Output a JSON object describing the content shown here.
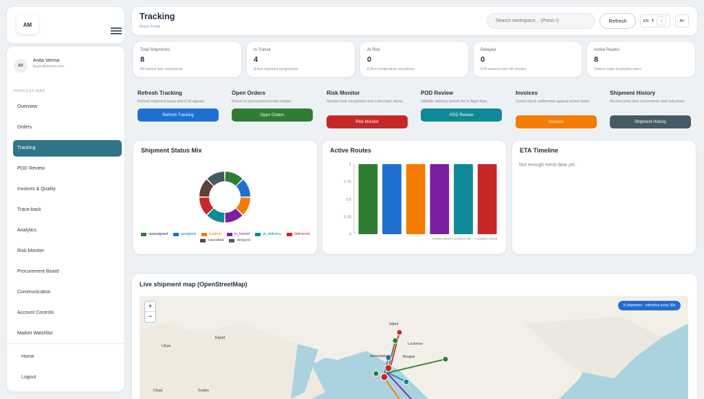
{
  "brand": {
    "initials": "AM"
  },
  "user": {
    "initials": "AV",
    "name": "Anita Verma",
    "email": "buyer@demo.com"
  },
  "sidebar": {
    "section_label": "PROCESS MAP",
    "items": [
      {
        "label": "Overview",
        "active": false
      },
      {
        "label": "Orders",
        "active": false
      },
      {
        "label": "Tracking",
        "active": true
      },
      {
        "label": "POD Review",
        "active": false
      },
      {
        "label": "Invoices & Quality",
        "active": false
      },
      {
        "label": "Trace-back",
        "active": false
      },
      {
        "label": "Analytics",
        "active": false
      },
      {
        "label": "Risk Monitor",
        "active": false
      },
      {
        "label": "Procurement Board",
        "active": false
      },
      {
        "label": "Communication",
        "active": false
      },
      {
        "label": "Account Controls",
        "active": false
      },
      {
        "label": "Market Watchlist",
        "active": false
      }
    ],
    "bottom": [
      {
        "label": "Home"
      },
      {
        "label": "Logout"
      }
    ]
  },
  "header": {
    "title": "Tracking",
    "subtitle": "Buyer Portal",
    "search_placeholder": "Search workspace... (Press /)",
    "refresh_label": "Refresh",
    "lang": "EN",
    "currency": "₹",
    "info": "i",
    "account_initials": "AV"
  },
  "stats": [
    {
      "label": "Total Shipments",
      "value": "8",
      "desc": "All tracked lane movements"
    },
    {
      "label": "In Transit",
      "value": "4",
      "desc": "Active shipment assignments"
    },
    {
      "label": "At Risk",
      "value": "0",
      "desc": "ETA or temperature exceptions"
    },
    {
      "label": "Delayed",
      "value": "0",
      "desc": "ETA variance over 60 minutes"
    },
    {
      "label": "Active Routes",
      "value": "8",
      "desc": "Distinct origin-destination lanes"
    }
  ],
  "actions": [
    {
      "title": "Refresh Tracking",
      "desc": "Reload shipment lanes and ETA signals.",
      "button": "Refresh Tracking",
      "color": "#1f6fd0"
    },
    {
      "title": "Open Orders",
      "desc": "Return to procurement order ledger.",
      "button": "Open Orders",
      "color": "#2e7d32"
    },
    {
      "title": "Risk Monitor",
      "desc": "Review lane exceptions and cold-chain alerts.",
      "button": "Risk Monitor",
      "color": "#c62828"
    },
    {
      "title": "POD Review",
      "desc": "Validate delivery proofs for in-flight trips.",
      "button": "POD Review",
      "color": "#0e8a96"
    },
    {
      "title": "Invoices",
      "desc": "Cross-check settlement against active lanes.",
      "button": "Invoices",
      "color": "#f57c00"
    },
    {
      "title": "Shipment History",
      "desc": "Review prior lane movements and outcomes.",
      "button": "Shipment History",
      "color": "#455a64"
    }
  ],
  "status_mix": {
    "title": "Shipment Status Mix",
    "legend": [
      {
        "label": "unassigned",
        "color": "#2e7d32"
      },
      {
        "label": "assigned",
        "color": "#1f6fd0"
      },
      {
        "label": "loading",
        "color": "#f57c00"
      },
      {
        "label": "in_transit",
        "color": "#7b1fa2"
      },
      {
        "label": "at_delivery",
        "color": "#0e8a96"
      },
      {
        "label": "delivered",
        "color": "#c62828"
      },
      {
        "label": "cancelled",
        "color": "#5d4037"
      },
      {
        "label": "delayed",
        "color": "#455a64"
      }
    ]
  },
  "chart_data": {
    "type": "bar",
    "title": "Active Routes",
    "categories": [
      "kolkata eastern produce hub - n azadpur mandi",
      "",
      "",
      "",
      "",
      ""
    ],
    "values": [
      1,
      1,
      1,
      1,
      1,
      1
    ],
    "colors": [
      "#2e7d32",
      "#1f6fd0",
      "#f57c00",
      "#7b1fa2",
      "#0e8a96",
      "#c62828"
    ],
    "yticks": [
      "0",
      "0.25",
      "0.5",
      "0.75",
      "1"
    ],
    "ylim": [
      0,
      1
    ]
  },
  "eta": {
    "title": "ETA Timeline",
    "empty": "Not enough trend data yet."
  },
  "map": {
    "title": "Live shipment map (OpenStreetMap)",
    "badge": "8 shipments · refreshes every 30s",
    "zoom_in": "+",
    "zoom_out": "−",
    "cities": [
      "Lucknow",
      "Bhopal",
      "Ahmedabad",
      "Jaipur",
      "Libya",
      "Chad",
      "Sudan",
      "Egypt"
    ]
  }
}
